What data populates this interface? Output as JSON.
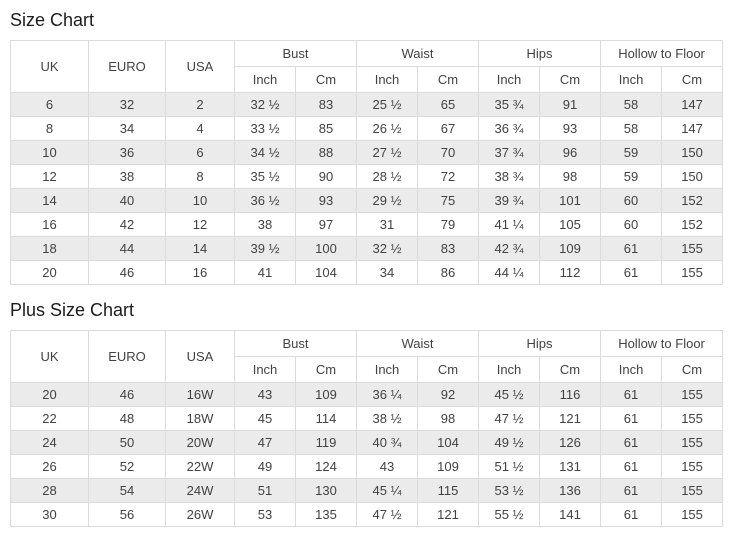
{
  "colors": {
    "stripe_row": "#ebebeb",
    "border": "#dbdbdb",
    "text": "#424242",
    "title": "#1c1c1c",
    "background": "#ffffff"
  },
  "chart_data": [
    {
      "type": "table",
      "title": "Size Chart",
      "header": {
        "simple": [
          "UK",
          "EURO",
          "USA"
        ],
        "groups": [
          "Bust",
          "Waist",
          "Hips",
          "Hollow to Floor"
        ],
        "sub": [
          "Inch",
          "Cm"
        ]
      },
      "rows": [
        [
          "6",
          "32",
          "2",
          "32 ½",
          "83",
          "25 ½",
          "65",
          "35 ¾",
          "91",
          "58",
          "147"
        ],
        [
          "8",
          "34",
          "4",
          "33 ½",
          "85",
          "26 ½",
          "67",
          "36 ¾",
          "93",
          "58",
          "147"
        ],
        [
          "10",
          "36",
          "6",
          "34 ½",
          "88",
          "27 ½",
          "70",
          "37 ¾",
          "96",
          "59",
          "150"
        ],
        [
          "12",
          "38",
          "8",
          "35 ½",
          "90",
          "28 ½",
          "72",
          "38 ¾",
          "98",
          "59",
          "150"
        ],
        [
          "14",
          "40",
          "10",
          "36 ½",
          "93",
          "29 ½",
          "75",
          "39 ¾",
          "101",
          "60",
          "152"
        ],
        [
          "16",
          "42",
          "12",
          "38",
          "97",
          "31",
          "79",
          "41 ¼",
          "105",
          "60",
          "152"
        ],
        [
          "18",
          "44",
          "14",
          "39 ½",
          "100",
          "32 ½",
          "83",
          "42 ¾",
          "109",
          "61",
          "155"
        ],
        [
          "20",
          "46",
          "16",
          "41",
          "104",
          "34",
          "86",
          "44 ¼",
          "112",
          "61",
          "155"
        ]
      ]
    },
    {
      "type": "table",
      "title": "Plus Size Chart",
      "header": {
        "simple": [
          "UK",
          "EURO",
          "USA"
        ],
        "groups": [
          "Bust",
          "Waist",
          "Hips",
          "Hollow to Floor"
        ],
        "sub": [
          "Inch",
          "Cm"
        ]
      },
      "rows": [
        [
          "20",
          "46",
          "16W",
          "43",
          "109",
          "36 ¼",
          "92",
          "45 ½",
          "116",
          "61",
          "155"
        ],
        [
          "22",
          "48",
          "18W",
          "45",
          "114",
          "38 ½",
          "98",
          "47 ½",
          "121",
          "61",
          "155"
        ],
        [
          "24",
          "50",
          "20W",
          "47",
          "119",
          "40 ¾",
          "104",
          "49 ½",
          "126",
          "61",
          "155"
        ],
        [
          "26",
          "52",
          "22W",
          "49",
          "124",
          "43",
          "109",
          "51 ½",
          "131",
          "61",
          "155"
        ],
        [
          "28",
          "54",
          "24W",
          "51",
          "130",
          "45 ¼",
          "115",
          "53 ½",
          "136",
          "61",
          "155"
        ],
        [
          "30",
          "56",
          "26W",
          "53",
          "135",
          "47 ½",
          "121",
          "55 ½",
          "141",
          "61",
          "155"
        ]
      ]
    }
  ]
}
